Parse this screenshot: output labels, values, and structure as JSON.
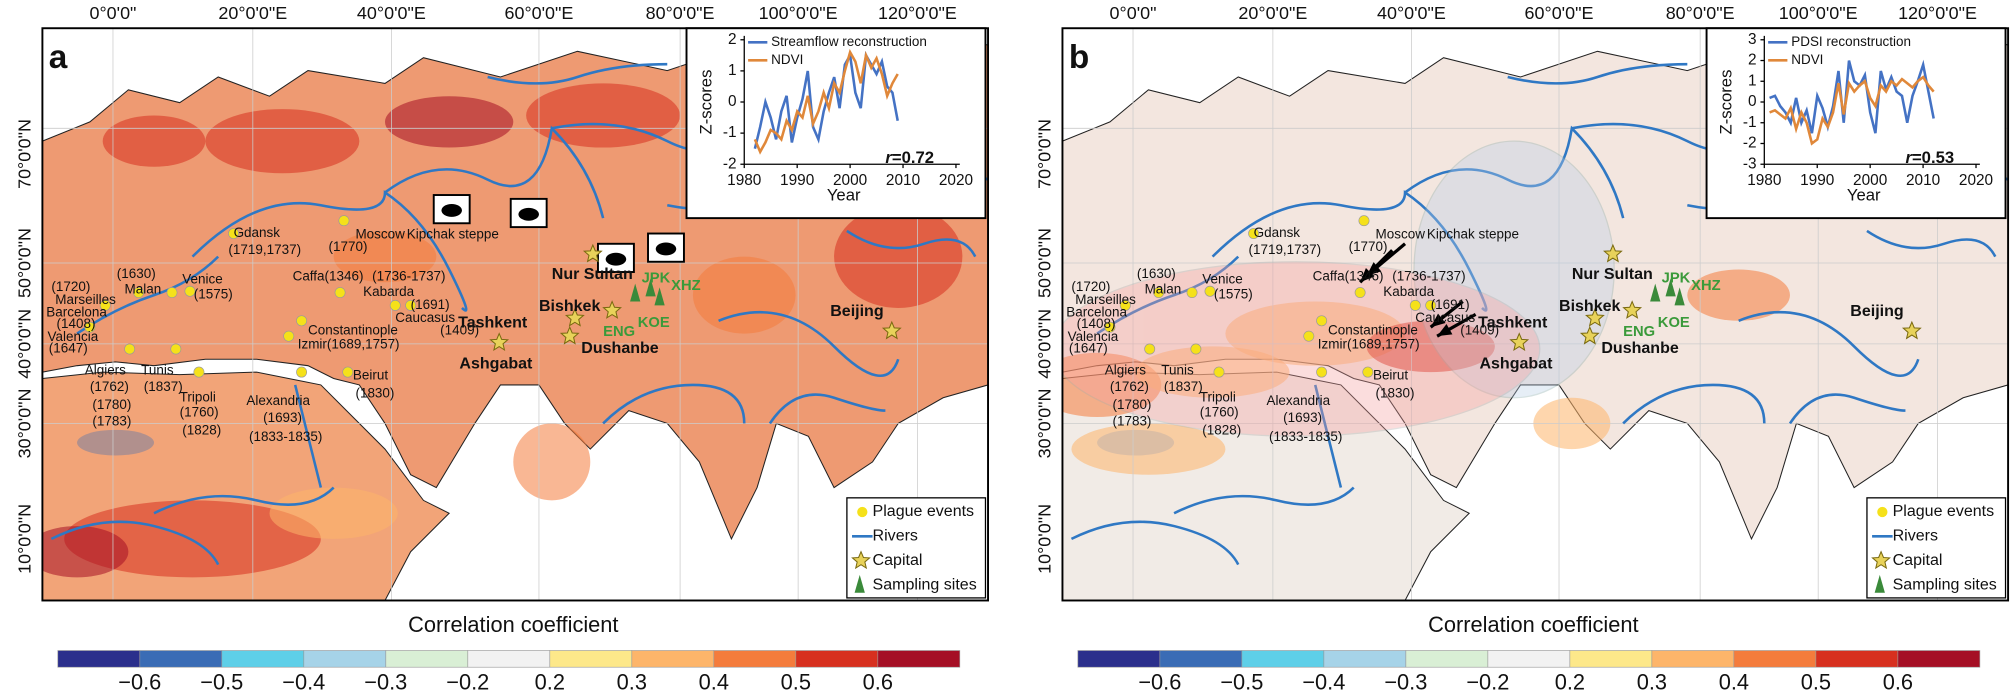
{
  "panels": [
    {
      "label": "a",
      "lon_ticks": [
        "0°0'0\"",
        "20°0'0\"E",
        "40°0'0\"E",
        "60°0'0\"E",
        "80°0'0\"E",
        "100°0'0\"E",
        "120°0'0\"E"
      ],
      "lat_ticks": [
        "70°0'0\"N",
        "50°0'0\"N",
        "40°0'0\"N",
        "30°0'0\"N",
        "10°0'0\"N"
      ],
      "places": [
        "Gdansk",
        "(1719,1737)",
        "Moscow",
        "(1770)",
        "Kipchak steppe",
        "Caffa(1346)",
        "(1736-1737)",
        "Kabarda",
        "(1691)",
        "Caucasus",
        "(1409)",
        "Constantinople",
        "Izmir(1689,1757)",
        "Venice",
        "(1575)",
        "(1630)",
        "Malan",
        "(1720)",
        "Marseilles",
        "Barcelona",
        "(1408)",
        "Valencia",
        "(1647)",
        "Algiers",
        "(1762)",
        "(1780)",
        "(1783)",
        "Tunis",
        "(1837)",
        "Tripoli",
        "(1760)",
        "(1828)",
        "Alexandria",
        "(1693)",
        "(1833-1835)",
        "Beirut",
        "(1830)"
      ],
      "capitals": [
        "Nur Sultan",
        "Bishkek",
        "Tashkent",
        "Dushanbe",
        "Ashgabat",
        "Beijing"
      ],
      "sites": [
        "JPK",
        "XHZ",
        "ENG",
        "KOE"
      ],
      "inset": {
        "type": "line",
        "xlabel": "Year",
        "ylabel": "Z-scores",
        "x": [
          1982,
          1983,
          1984,
          1985,
          1986,
          1987,
          1988,
          1989,
          1990,
          1991,
          1992,
          1993,
          1994,
          1995,
          1996,
          1997,
          1998,
          1999,
          2000,
          2001,
          2002,
          2003,
          2004,
          2005,
          2006,
          2007,
          2008,
          2009
        ],
        "xlim": [
          1980,
          2020
        ],
        "xticks": [
          1980,
          1990,
          2000,
          2010,
          2020
        ],
        "ylim": [
          -2,
          2
        ],
        "yticks": [
          -2,
          -1,
          0,
          1,
          2
        ],
        "series": [
          {
            "name": "Streamflow reconstruction",
            "color": "#4472c4",
            "values": [
              -1.5,
              -0.8,
              0,
              -0.5,
              -1.2,
              -0.3,
              0.2,
              -1.3,
              -0.5,
              0.1,
              1.0,
              -0.8,
              -1.2,
              -0.3,
              0.3,
              0.8,
              -0.2,
              1.2,
              1.5,
              0.3,
              -0.2,
              1.5,
              1.2,
              0.9,
              1.3,
              0.5,
              0.3,
              -0.6
            ]
          },
          {
            "name": "NDVI",
            "color": "#e0883a",
            "values": [
              -1.2,
              -1.6,
              -1.3,
              -0.9,
              -1.0,
              -1.2,
              -0.6,
              -0.9,
              -0.3,
              -0.5,
              0.2,
              -0.7,
              -0.3,
              0.3,
              -0.2,
              0.6,
              0.3,
              1.0,
              1.6,
              1.3,
              0.6,
              1.5,
              1.1,
              1.4,
              0.9,
              0.2,
              0.6,
              0.9
            ]
          }
        ],
        "r_symbol": "r",
        "r_text": "=0.72"
      },
      "legend": [
        "Plague events",
        "Rivers",
        "Capital",
        "Sampling sites"
      ],
      "colorbar": {
        "title": "Correlation coefficient",
        "colors": [
          "#2b2f8c",
          "#3a6cb5",
          "#5ecfe8",
          "#a6d3e8",
          "#d9efd5",
          "#f2f2f2",
          "#fde88a",
          "#fdb56a",
          "#f47c3c",
          "#d7301f",
          "#a50f25"
        ],
        "ticks": [
          "−0.6",
          "−0.5",
          "−0.4",
          "−0.3",
          "−0.2",
          "0.2",
          "0.3",
          "0.4",
          "0.5",
          "0.6"
        ]
      }
    },
    {
      "label": "b",
      "lon_ticks": [
        "0°0'0\"",
        "20°0'0\"E",
        "40°0'0\"E",
        "60°0'0\"E",
        "80°0'0\"E",
        "100°0'0\"E",
        "120°0'0\"E"
      ],
      "lat_ticks": [
        "70°0'0\"N",
        "50°0'0\"N",
        "40°0'0\"N",
        "30°0'0\"N",
        "10°0'0\"N"
      ],
      "places": [
        "Gdansk",
        "(1719,1737)",
        "Moscow",
        "(1770)",
        "Kipchak steppe",
        "Caffa(1346)",
        "(1736-1737)",
        "Kabarda",
        "(1691)",
        "Caucasus",
        "(1409)",
        "Constantinople",
        "Izmir(1689,1757)",
        "Venice",
        "(1575)",
        "(1630)",
        "Malan",
        "(1720)",
        "Marseilles",
        "Barcelona",
        "(1408)",
        "Valencia",
        "(1647)",
        "Algiers",
        "(1762)",
        "(1780)",
        "(1783)",
        "Tunis",
        "(1837)",
        "Tripoli",
        "(1760)",
        "(1828)",
        "Alexandria",
        "(1693)",
        "(1833-1835)",
        "Beirut",
        "(1830)"
      ],
      "capitals": [
        "Nur Sultan",
        "Bishkek",
        "Tashkent",
        "Dushanbe",
        "Ashgabat",
        "Beijing"
      ],
      "sites": [
        "JPK",
        "XHZ",
        "ENG",
        "KOE"
      ],
      "inset": {
        "type": "line",
        "xlabel": "Year",
        "ylabel": "Z-scores",
        "x": [
          1981,
          1982,
          1983,
          1984,
          1985,
          1986,
          1987,
          1988,
          1989,
          1990,
          1991,
          1992,
          1993,
          1994,
          1995,
          1996,
          1997,
          1998,
          1999,
          2000,
          2001,
          2002,
          2003,
          2004,
          2005,
          2006,
          2007,
          2008,
          2009,
          2010,
          2011,
          2012
        ],
        "xlim": [
          1980,
          2020
        ],
        "xticks": [
          1980,
          1990,
          2000,
          2010,
          2020
        ],
        "ylim": [
          -3,
          3
        ],
        "yticks": [
          -3,
          -2,
          -1,
          0,
          1,
          2,
          3
        ],
        "series": [
          {
            "name": "PDSI reconstruction",
            "color": "#4472c4",
            "values": [
              0.2,
              0.3,
              -0.2,
              -0.5,
              -1.0,
              0.2,
              -1.0,
              -0.4,
              -1.5,
              0.3,
              -0.3,
              -1.2,
              -0.2,
              1.5,
              -1.0,
              2.0,
              1.0,
              0.8,
              1.3,
              -0.5,
              -1.5,
              1.5,
              0.6,
              1.2,
              0.5,
              0.3,
              -1.0,
              0.3,
              1.0,
              1.8,
              0.5,
              -0.8
            ]
          },
          {
            "name": "NDVI",
            "color": "#e0883a",
            "values": [
              -0.5,
              -0.4,
              -0.6,
              -0.8,
              -0.3,
              -1.3,
              -0.5,
              -1.0,
              -2.0,
              -1.8,
              -0.8,
              -1.2,
              -0.5,
              0.9,
              -0.6,
              0.9,
              0.5,
              0.8,
              1.0,
              0.2,
              -0.2,
              0.8,
              0.5,
              1.0,
              0.8,
              1.1,
              0.9,
              0.7,
              1.0,
              1.2,
              0.8,
              0.5
            ]
          }
        ],
        "r_symbol": "r",
        "r_text": "=0.53"
      },
      "legend": [
        "Plague events",
        "Rivers",
        "Capital",
        "Sampling sites"
      ],
      "colorbar": {
        "title": "Correlation coefficient",
        "colors": [
          "#2b2f8c",
          "#3a6cb5",
          "#5ecfe8",
          "#a6d3e8",
          "#d9efd5",
          "#f2f2f2",
          "#fde88a",
          "#fdb56a",
          "#f47c3c",
          "#d7301f",
          "#a50f25"
        ],
        "ticks": [
          "−0.6",
          "−0.5",
          "−0.4",
          "−0.3",
          "−0.2",
          "0.2",
          "0.3",
          "0.4",
          "0.5",
          "0.6"
        ]
      }
    }
  ]
}
